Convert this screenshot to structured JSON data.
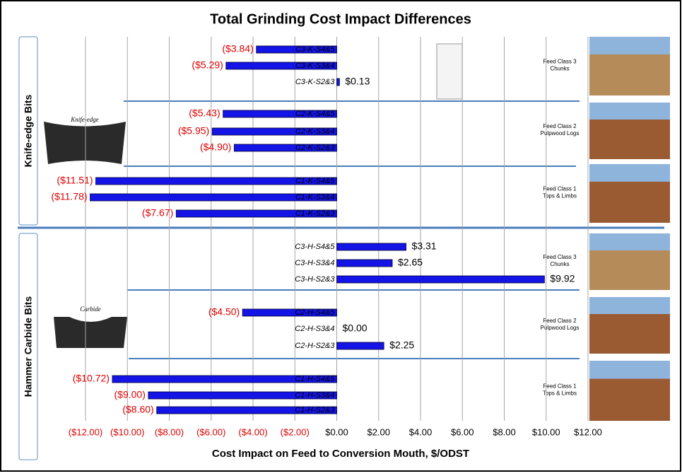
{
  "chart_data": {
    "type": "hbar",
    "title": "Total Grinding Cost Impact Differences",
    "x_label": "Cost Impact on Feed to Conversion Mouth, $/ODST",
    "categories": [
      "C3-K-S4&5",
      "C3-K-S3&4",
      "C3-K-S2&3",
      "C2-K-S4&5",
      "C2-K-S3&4",
      "C2-K-S2&3",
      "C1-K-S4&5",
      "C1-K-S3&4",
      "C1-K-S2&3",
      "C3-H-S4&5",
      "C3-H-S3&4",
      "C3-H-S2&3",
      "C2-H-S4&5",
      "C2-H-S3&4",
      "C2-H-S2&3",
      "C1-H-S4&5",
      "C1-H-S3&4",
      "C1-H-S2&3"
    ],
    "values": [
      -3.84,
      -5.29,
      0.13,
      -5.43,
      -5.95,
      -4.9,
      -11.51,
      -11.78,
      -7.67,
      3.31,
      2.65,
      9.92,
      -4.5,
      0.0,
      2.25,
      -10.72,
      -9.0,
      -8.6
    ],
    "value_labels": [
      "($3.84)",
      "($5.29)",
      "$0.13",
      "($5.43)",
      "($5.95)",
      "($4.90)",
      "($11.51)",
      "($11.78)",
      "($7.67)",
      "$3.31",
      "$2.65",
      "$9.92",
      "($4.50)",
      "$0.00",
      "$2.25",
      "($10.72)",
      "($9.00)",
      "($8.60)"
    ],
    "color": "#1414e6",
    "negative_color": "#e00000",
    "xlim": [
      -12,
      12
    ],
    "xticks": [
      {
        "value": -12,
        "label": "($12.00)"
      },
      {
        "value": -10,
        "label": "($10.00)"
      },
      {
        "value": -8,
        "label": "($8.00)"
      },
      {
        "value": -6,
        "label": "($6.00)"
      },
      {
        "value": -4,
        "label": "($4.00)"
      },
      {
        "value": -2,
        "label": "($2.00)"
      },
      {
        "value": 0,
        "label": "$0.00"
      },
      {
        "value": 2,
        "label": "$2.00"
      },
      {
        "value": 4,
        "label": "$4.00"
      },
      {
        "value": 6,
        "label": "$6.00"
      },
      {
        "value": 8,
        "label": "$8.00"
      },
      {
        "value": 10,
        "label": "$10.00"
      },
      {
        "value": 12,
        "label": "$12.00"
      }
    ],
    "grid": true,
    "groups": [
      {
        "label": "Knife-edge Bits",
        "image_label": "Knife-edge"
      },
      {
        "label": "Hammer Carbide Bits",
        "image_label": "Carbide"
      }
    ],
    "feed_class_labels": [
      [
        "Feed Class 3",
        "Chunks"
      ],
      [
        "Feed Class 2",
        "Pulpwood Logs"
      ],
      [
        "Feed Class 1",
        "Tops & Limbs"
      ],
      [
        "Feed Class 3",
        "Chunks"
      ],
      [
        "Feed Class 2",
        "Pulpwood Logs"
      ],
      [
        "Feed Class 1",
        "Tops & Limbs"
      ]
    ]
  }
}
